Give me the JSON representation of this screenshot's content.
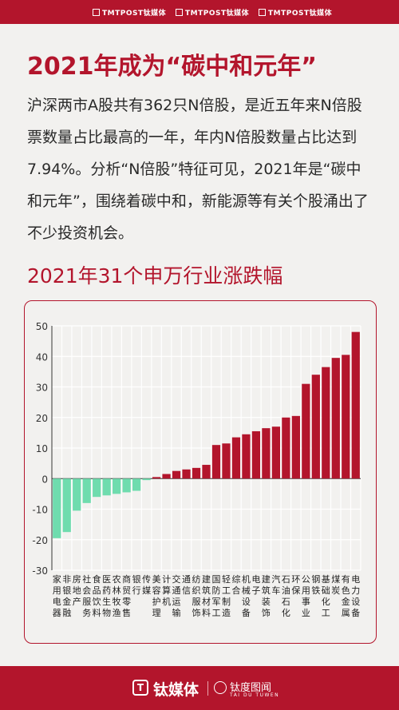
{
  "header": {
    "items": [
      "TMTPOST钛媒体",
      "TMTPOST钛媒体",
      "TMTPOST钛媒体"
    ]
  },
  "headline": "2021年成为“碳中和元年”",
  "body_text": "沪深两市A股共有362只N倍股，是近五年来N倍股票数量占比最高的一年，年内N倍股数量占比达到7.94%。分析“N倍股”特征可见，2021年是“碳中和元年”，围绕着碳中和，新能源等有关个股涌出了不少投资机会。",
  "subtitle": "2021年31个申万行业涨跌幅",
  "footer": {
    "brand": "钛媒体",
    "brand2": "钛度图闻",
    "brand2_sub": "TAI DU TUWEN"
  },
  "colors": {
    "brand_red": "#b3152c",
    "bar_positive": "#b3152c",
    "bar_negative": "#6fdcae",
    "background": "#f2f1ef"
  },
  "chart_data": {
    "type": "bar",
    "categories": [
      "家用电器",
      "非银金融",
      "房地产",
      "社会服务",
      "食品饮料",
      "医药生物",
      "农林牧渔",
      "商贸零售",
      "银行",
      "传媒",
      "美容护理",
      "计算机",
      "交通运输",
      "通信",
      "纺织服饰",
      "建筑材料",
      "国防军工",
      "轻工制造",
      "综合",
      "机械设备",
      "电子",
      "建筑装饰",
      "汽车",
      "石油石化",
      "环保",
      "公用事业",
      "钢铁",
      "基础化工",
      "煤炭",
      "有色金属",
      "电力设备"
    ],
    "values": [
      -19.5,
      -17.5,
      -10.5,
      -8.0,
      -6.0,
      -5.5,
      -5.0,
      -4.5,
      -4.0,
      -0.5,
      0.5,
      1.5,
      2.5,
      3.0,
      3.5,
      4.5,
      11.0,
      11.5,
      13.5,
      14.5,
      15.5,
      16.5,
      17.0,
      20.0,
      20.5,
      31.0,
      34.0,
      36.5,
      39.5,
      40.5,
      48.0
    ],
    "yticks": [
      50,
      40,
      30,
      20,
      10,
      0,
      -10,
      -20,
      -30
    ],
    "ylim": [
      -30,
      50
    ],
    "grid": true
  }
}
